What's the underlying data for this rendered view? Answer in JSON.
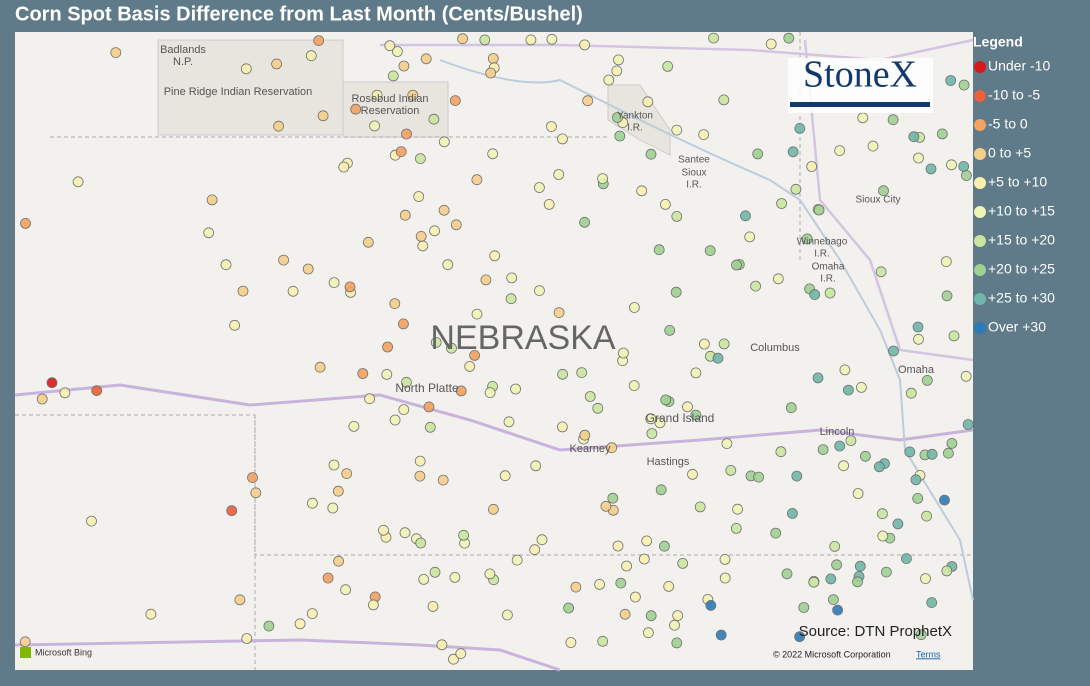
{
  "header": {
    "title": "Corn Spot Basis Difference from Last Month (Cents/Bushel)"
  },
  "map": {
    "labels": [
      {
        "text": "Badlands"
      },
      {
        "text": "N.P."
      },
      {
        "text": "Pine Ridge Indian Reservation"
      },
      {
        "text": "Rosebud Indian"
      },
      {
        "text": "Reservation"
      },
      {
        "text": "Yankton"
      },
      {
        "text": "I.R."
      },
      {
        "text": "Santee"
      },
      {
        "text": "Sioux"
      },
      {
        "text": "I.R."
      },
      {
        "text": "Winnebago"
      },
      {
        "text": "I.R."
      },
      {
        "text": "Omaha"
      },
      {
        "text": "I.R."
      },
      {
        "text": "Sioux City"
      },
      {
        "text": "NEBRASKA"
      },
      {
        "text": "North Platte"
      },
      {
        "text": "Columbus"
      },
      {
        "text": "Omaha"
      },
      {
        "text": "Grand Island"
      },
      {
        "text": "Kearney"
      },
      {
        "text": "Hastings"
      },
      {
        "text": "Lincoln"
      }
    ],
    "logo": "StoneX",
    "source": "Source: DTN ProphetX",
    "bing": "Microsoft Bing",
    "copyright": "© 2022 Microsoft Corporation",
    "terms": "Terms"
  },
  "legend": {
    "title": "Legend",
    "items": [
      {
        "label": "Under -10",
        "color": "#d7191c"
      },
      {
        "label": "-10 to -5",
        "color": "#e8603c"
      },
      {
        "label": "-5 to 0",
        "color": "#f4a261"
      },
      {
        "label": "0 to +5",
        "color": "#f6cf8a"
      },
      {
        "label": "+5 to +10",
        "color": "#f9f0b0"
      },
      {
        "label": "+10 to +15",
        "color": "#eef5b5"
      },
      {
        "label": "+15 to +20",
        "color": "#c9e6a0"
      },
      {
        "label": "+20 to +25",
        "color": "#9fd191"
      },
      {
        "label": "+25 to +30",
        "color": "#6fb7a8"
      },
      {
        "label": "Over +30",
        "color": "#2c7bb6"
      }
    ]
  }
}
